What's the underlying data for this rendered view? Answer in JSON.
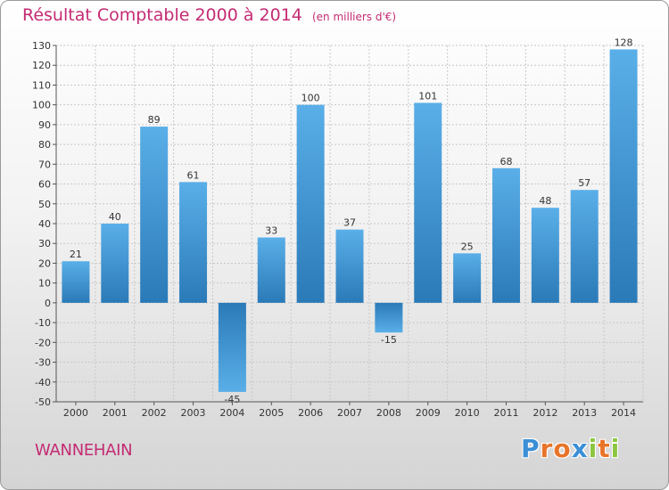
{
  "chart_data": {
    "type": "bar",
    "title": "Résultat Comptable 2000 à 2014",
    "subtitle": "(en milliers d'€)",
    "categories": [
      "2000",
      "2001",
      "2002",
      "2003",
      "2004",
      "2005",
      "2006",
      "2007",
      "2008",
      "2009",
      "2010",
      "2011",
      "2012",
      "2013",
      "2014"
    ],
    "values": [
      21,
      40,
      89,
      61,
      -45,
      33,
      100,
      37,
      -15,
      101,
      25,
      68,
      48,
      57,
      128
    ],
    "xlabel": "",
    "ylabel": "",
    "ylim": [
      -50,
      130
    ],
    "yticks": [
      -50,
      -40,
      -30,
      -20,
      -10,
      0,
      10,
      20,
      30,
      40,
      50,
      60,
      70,
      80,
      90,
      100,
      110,
      120,
      130
    ],
    "grid": true,
    "bar_color_light": "#5aafe8",
    "bar_color_dark": "#2a7ab8"
  },
  "footer": {
    "commune": "WANNEHAIN",
    "brand_letters": [
      "P",
      "r",
      "o",
      "x",
      "i",
      "t",
      "i"
    ],
    "brand_colors": [
      "#3b8fd6",
      "#e8742a",
      "#e8742a",
      "#3b8fd6",
      "#8cc63f",
      "#e8742a",
      "#8cc63f"
    ]
  }
}
